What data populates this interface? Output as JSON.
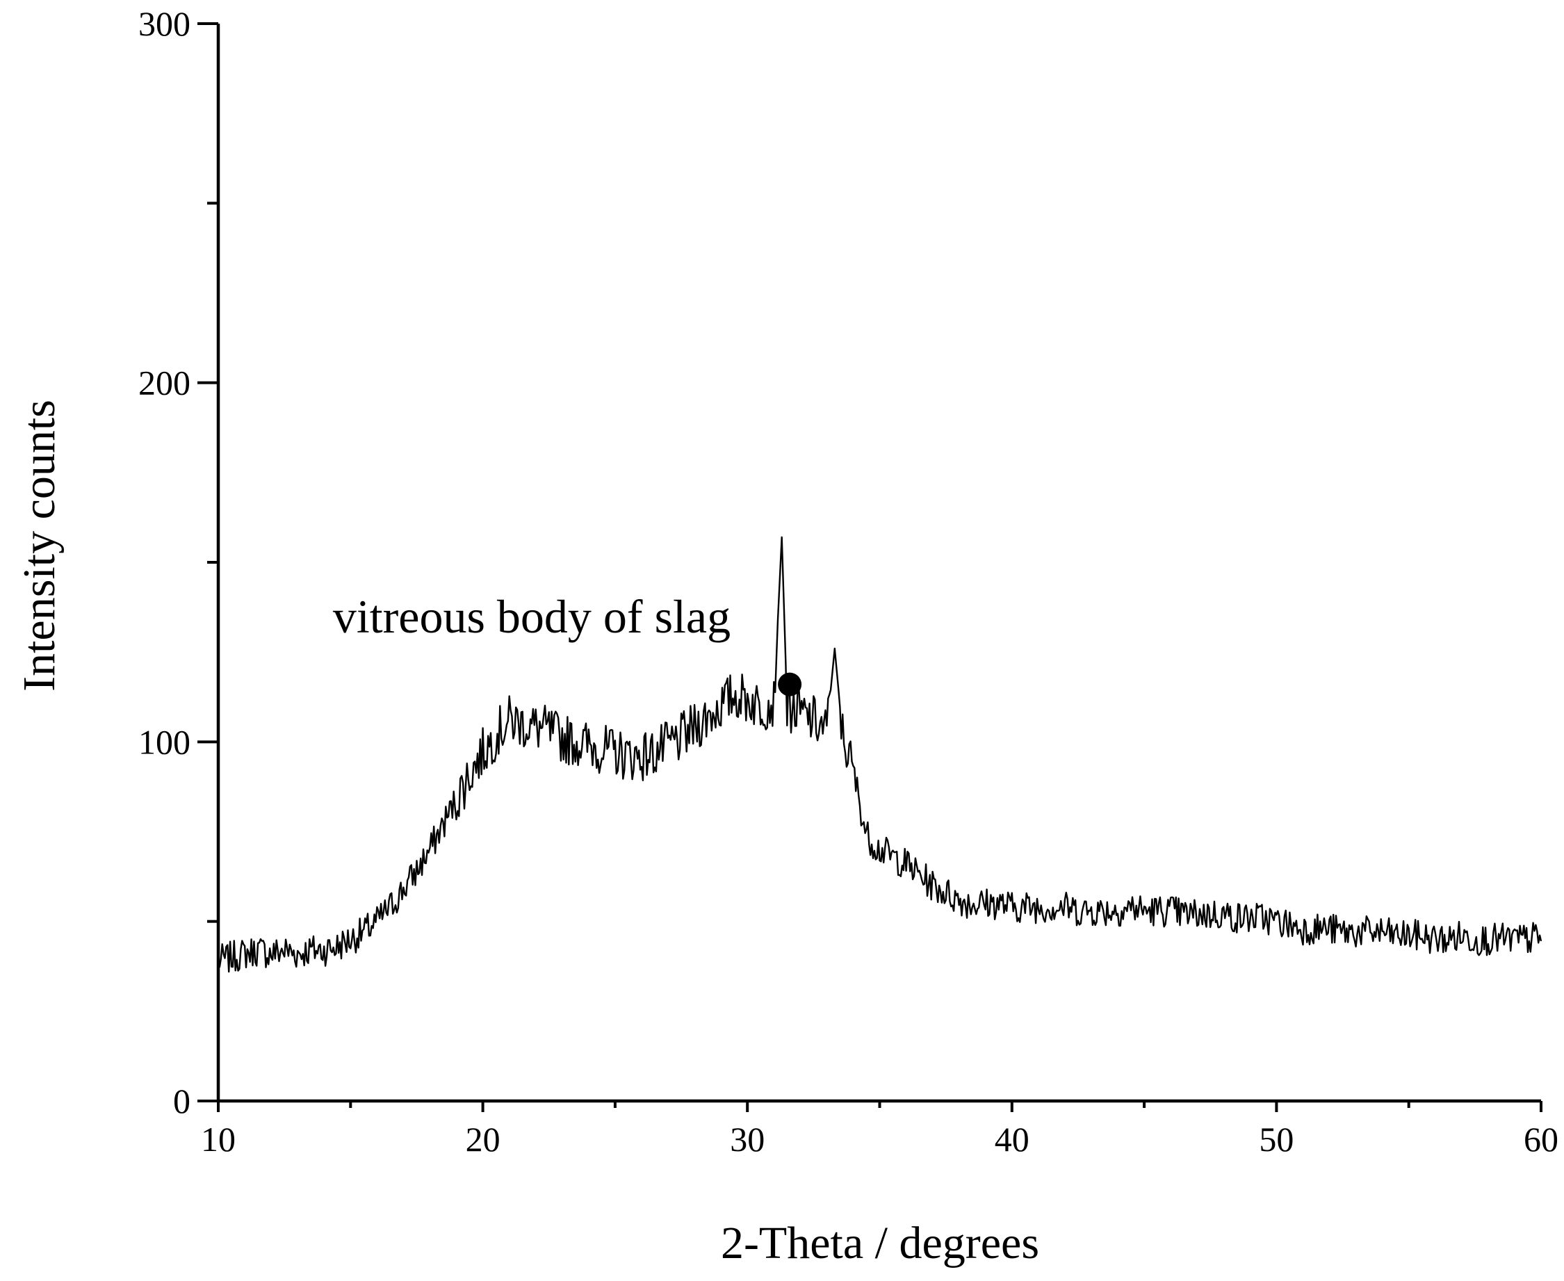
{
  "chart_data": {
    "type": "line",
    "title": "",
    "xlabel": "2-Theta / degrees",
    "ylabel": "Intensity counts",
    "xlim": [
      10,
      60
    ],
    "ylim": [
      0,
      300
    ],
    "x_major_ticks": [
      10,
      20,
      30,
      40,
      50,
      60
    ],
    "x_minor_ticks": [
      15,
      25,
      35,
      45,
      55
    ],
    "y_major_ticks": [
      0,
      100,
      200,
      300
    ],
    "y_minor_ticks": [
      50,
      150,
      250
    ],
    "x_tick_labels": [
      "10",
      "20",
      "30",
      "40",
      "50",
      "60"
    ],
    "y_tick_labels": [
      "0",
      "100",
      "200",
      "300"
    ],
    "grid": false,
    "legend": "none",
    "line_color": "#000000",
    "series": [
      {
        "x": [
          10,
          10.5,
          11,
          11.5,
          12,
          12.5,
          13,
          13.5,
          14,
          14.5,
          15,
          15.5,
          16,
          16.5,
          17,
          17.5,
          18,
          18.5,
          19,
          19.5,
          20,
          20.5,
          21,
          21.5,
          22,
          22.5,
          23,
          23.5,
          24,
          24.5,
          25,
          25.5,
          26,
          26.5,
          27,
          27.5,
          28,
          28.5,
          29,
          29.5,
          30,
          30.5,
          31,
          31.3,
          31.5,
          32,
          32.5,
          33,
          33.3,
          33.6,
          34,
          34.5,
          35,
          35.5,
          36,
          36.5,
          37,
          37.5,
          38,
          38.5,
          39,
          39.5,
          40,
          40.5,
          41,
          41.5,
          42,
          42.5,
          43,
          43.5,
          44,
          44.5,
          45,
          45.5,
          46,
          46.5,
          47,
          47.5,
          48,
          48.5,
          49,
          49.5,
          50,
          50.5,
          51,
          51.5,
          52,
          52.5,
          53,
          53.5,
          54,
          54.5,
          55,
          55.5,
          56,
          56.5,
          57,
          57.5,
          58,
          58.5,
          59,
          59.5,
          60
        ],
        "y": [
          39,
          40,
          41,
          42,
          41,
          42,
          41,
          42,
          42,
          43,
          45,
          47,
          50,
          54,
          59,
          64,
          70,
          77,
          84,
          91,
          97,
          102,
          106,
          105,
          104,
          103,
          101,
          100,
          99,
          98,
          97,
          96,
          96,
          97,
          99,
          101,
          104,
          107,
          110,
          113,
          112,
          110,
          111,
          157,
          110,
          108,
          106,
          103,
          126,
          102,
          92,
          74,
          70,
          68,
          66,
          63,
          60,
          58,
          56,
          55,
          55,
          55,
          54,
          54,
          54,
          54,
          54,
          53,
          53,
          53,
          53,
          54,
          53,
          53,
          53,
          52,
          52,
          52,
          52,
          51,
          51,
          51,
          50,
          49,
          48,
          48,
          48,
          47,
          47,
          47,
          47,
          46,
          46,
          46,
          45,
          45,
          46,
          45,
          45,
          45,
          45,
          45,
          46
        ]
      }
    ],
    "annotations": [
      {
        "text": "vitreous body of slag",
        "x": 31.6,
        "y": 116,
        "marker": "filled-circle"
      }
    ]
  }
}
